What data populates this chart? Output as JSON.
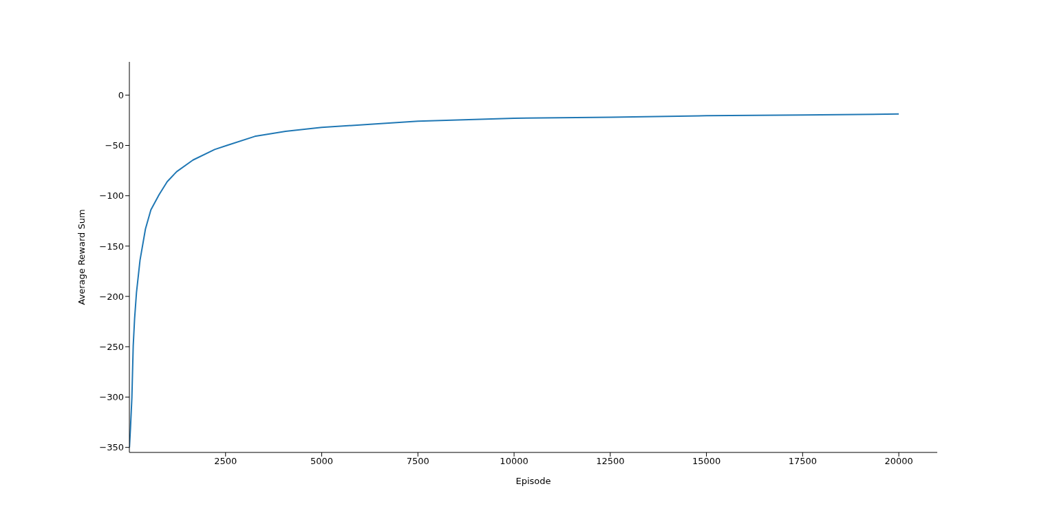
{
  "chart_data": {
    "type": "line",
    "xlabel": "Episode",
    "ylabel": "Average Reward Sum",
    "x": [
      1,
      30,
      65,
      100,
      136,
      185,
      277,
      418,
      559,
      771,
      983,
      1230,
      1653,
      2218,
      2535,
      3260,
      4060,
      5000,
      6260,
      7500,
      10000,
      12520,
      15000,
      17500,
      20000
    ],
    "series": [
      {
        "color": "#1f77b4",
        "values": [
          -350,
          -330,
          -301,
          -249,
          -222,
          -196,
          -164,
          -133,
          -114,
          -99,
          -86,
          -76,
          -64.5,
          -54,
          -50,
          -41,
          -36,
          -32,
          -29,
          -26,
          -23,
          -22,
          -20.5,
          -19.7,
          -18.8
        ]
      }
    ],
    "xlim": [
      0,
      21000
    ],
    "xticks": [
      2500,
      5000,
      7500,
      10000,
      12500,
      15000,
      17500,
      20000
    ],
    "ylim": [
      -355,
      33
    ],
    "yticks": [
      -350,
      -300,
      -250,
      -200,
      -150,
      -100,
      -50,
      0
    ],
    "grid": false,
    "legend": false,
    "marker": "none",
    "line_style": "solid"
  }
}
